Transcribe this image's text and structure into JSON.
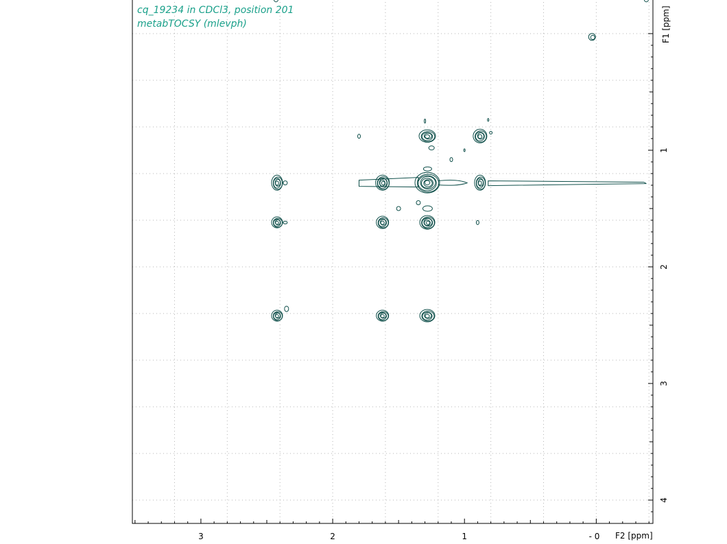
{
  "header": {
    "line1": "cq_19234 in CDCl3, position 201",
    "line2": "metabTOCSY (mlevph)"
  },
  "colors": {
    "contour": "#0f4f4a",
    "title": "#1aa08a",
    "grid": "#b4b4b4",
    "frame": "#000000"
  },
  "chart_data": {
    "type": "contour",
    "xlabel": "F2 [ppm]",
    "ylabel": "F1 [ppm]",
    "xlim": [
      3.52,
      -0.43
    ],
    "ylim": [
      -0.3,
      4.2
    ],
    "x_axis_reversed": true,
    "y_axis_inverted": true,
    "grid": true,
    "x_ticks": [
      3,
      2,
      1,
      0
    ],
    "x_tick_labels": [
      "3",
      "2",
      "1",
      "- 0"
    ],
    "y_ticks": [
      1,
      2,
      3,
      4
    ],
    "y_tick_labels": [
      "1",
      "2",
      "3",
      "4"
    ],
    "diagonal_peaks": [
      {
        "f2": 1.28,
        "f1": 1.28
      },
      {
        "f2": 0.88,
        "f1": 0.88
      },
      {
        "f2": 1.62,
        "f1": 1.62
      },
      {
        "f2": 2.42,
        "f1": 2.42
      },
      {
        "f2": 0.03,
        "f1": 0.03
      }
    ],
    "cross_peaks": [
      {
        "f2": 1.28,
        "f1": 0.88
      },
      {
        "f2": 0.88,
        "f1": 1.28
      },
      {
        "f2": 1.62,
        "f1": 1.28
      },
      {
        "f2": 1.28,
        "f1": 1.62
      },
      {
        "f2": 2.42,
        "f1": 1.28
      },
      {
        "f2": 1.28,
        "f1": 2.42
      },
      {
        "f2": 2.42,
        "f1": 1.62
      },
      {
        "f2": 1.62,
        "f1": 2.42
      }
    ]
  }
}
